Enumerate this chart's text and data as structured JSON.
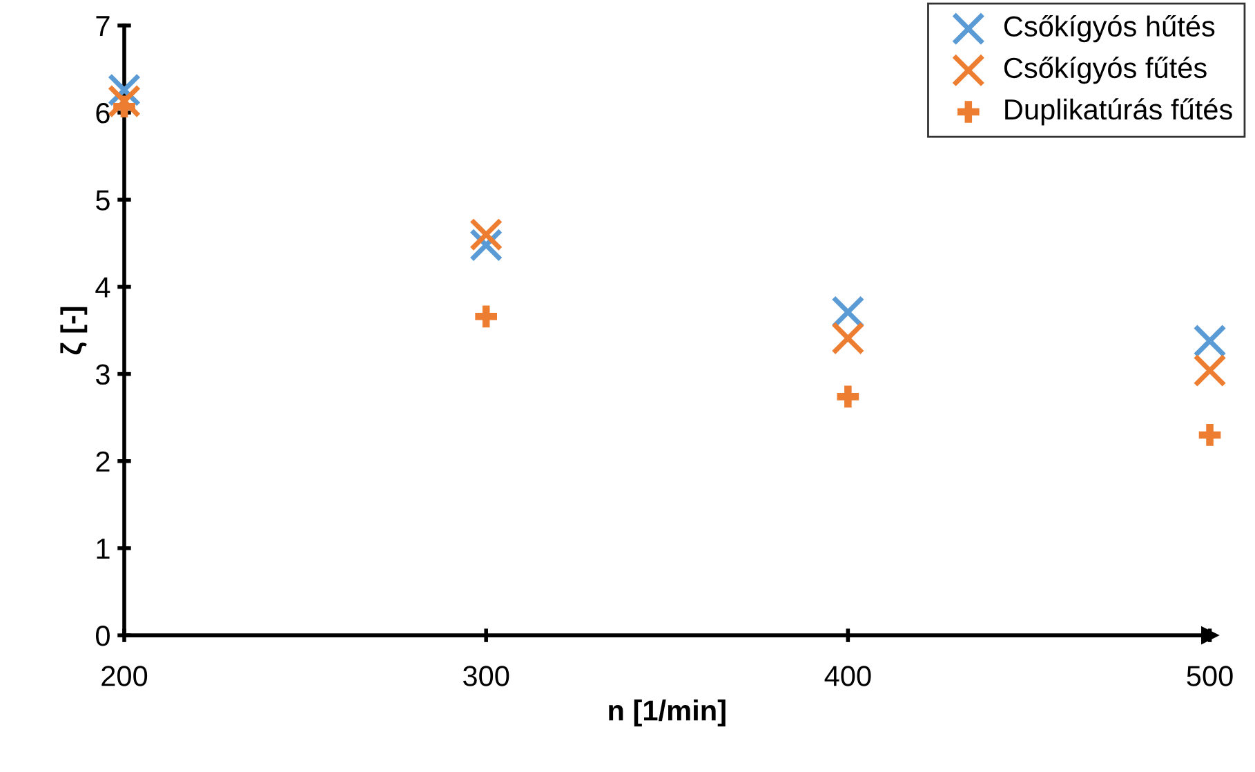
{
  "chart_data": {
    "type": "scatter",
    "xlabel": "n [1/min]",
    "ylabel": "ζ [-]",
    "x": [
      200,
      300,
      400,
      500
    ],
    "series": [
      {
        "name": "Csőkígyós hűtés",
        "color": "#5b9bd5",
        "marker": "cross",
        "values": [
          6.26,
          4.48,
          3.71,
          3.38
        ]
      },
      {
        "name": "Csőkígyós fűtés",
        "color": "#ed7d31",
        "marker": "cross",
        "values": [
          6.13,
          4.6,
          3.41,
          3.04
        ]
      },
      {
        "name": "Duplikatúrás fűtés",
        "color": "#ed7d31",
        "values": [
          6.07,
          3.66,
          2.74,
          2.3
        ]
      }
    ],
    "xlim": [
      200,
      500
    ],
    "xticks": [
      200,
      300,
      400,
      500
    ],
    "ylim": [
      0,
      7
    ],
    "yticks": [
      0,
      1,
      2,
      3,
      4,
      5,
      6,
      7
    ],
    "grid": false,
    "legend": "top right"
  }
}
